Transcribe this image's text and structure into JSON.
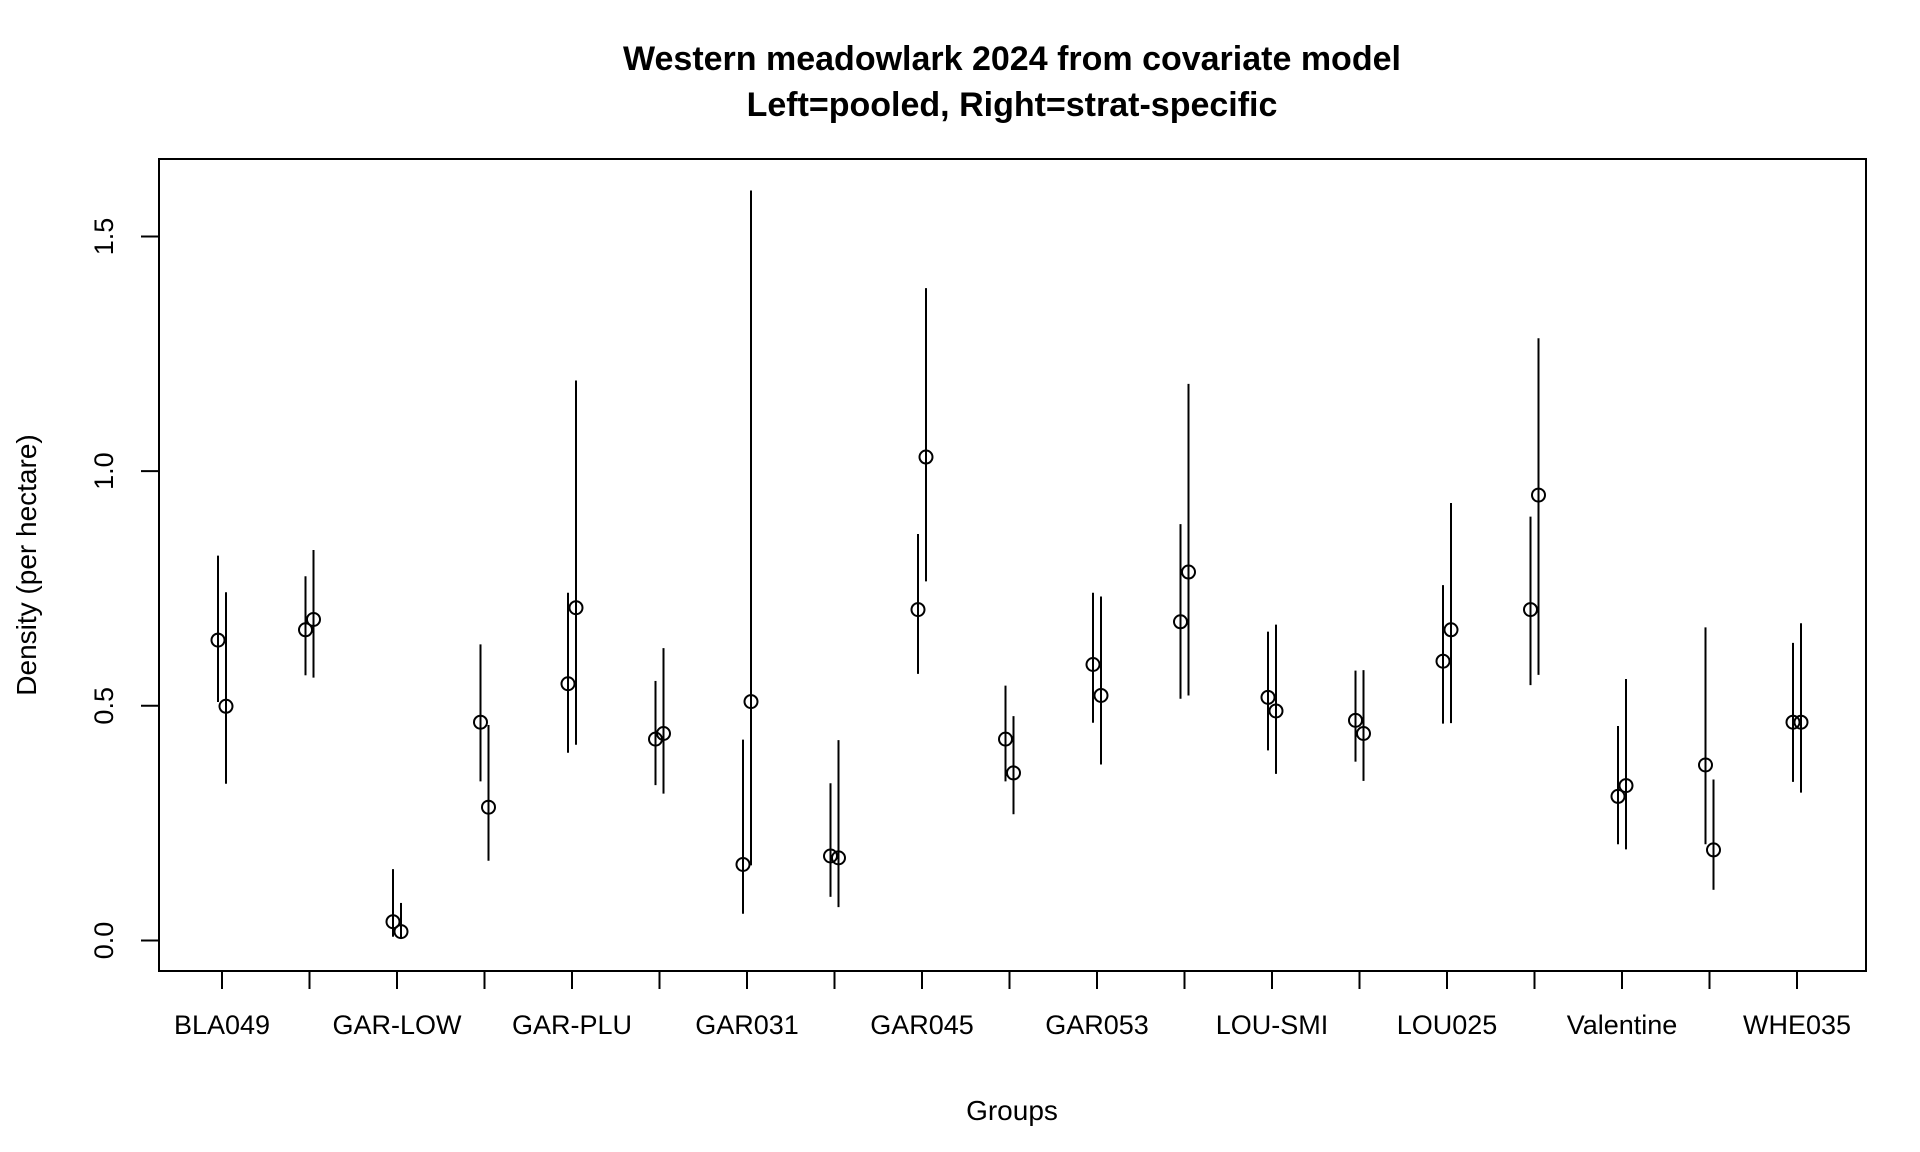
{
  "chart_data": {
    "type": "scatter",
    "title": "Western meadowlark 2024 from covariate model",
    "subtitle": "Left=pooled, Right=strat-specific",
    "xlabel": "Groups",
    "ylabel": "Density (per hectare)",
    "ylim": [
      -0.065,
      1.665
    ],
    "y_ticks": [
      0.0,
      0.5,
      1.0,
      1.5
    ],
    "y_tick_labels": [
      "0.0",
      "0.5",
      "1.0",
      "1.5"
    ],
    "x_tick_count": 19,
    "x_tick_labels": [
      {
        "index": 1,
        "label": "BLA049"
      },
      {
        "index": 3,
        "label": "GAR-LOW"
      },
      {
        "index": 5,
        "label": "GAR-PLU"
      },
      {
        "index": 7,
        "label": "GAR031"
      },
      {
        "index": 9,
        "label": "GAR045"
      },
      {
        "index": 11,
        "label": "GAR053"
      },
      {
        "index": 13,
        "label": "LOU-SMI"
      },
      {
        "index": 15,
        "label": "LOU025"
      },
      {
        "index": 17,
        "label": "Valentine"
      },
      {
        "index": 19,
        "label": "WHE035"
      }
    ],
    "grid": false,
    "series": [
      {
        "values": [
          0.64,
          0.662,
          0.04,
          0.465,
          0.547,
          0.429,
          0.162,
          0.18,
          0.705,
          0.429,
          0.588,
          0.679,
          0.518,
          0.469,
          0.595,
          0.705,
          0.307,
          0.374,
          0.465
        ],
        "lower": [
          0.508,
          0.565,
          0.008,
          0.339,
          0.4,
          0.331,
          0.057,
          0.093,
          0.568,
          0.339,
          0.464,
          0.515,
          0.405,
          0.381,
          0.462,
          0.544,
          0.205,
          0.205,
          0.338
        ],
        "upper": [
          0.82,
          0.776,
          0.152,
          0.631,
          0.741,
          0.553,
          0.428,
          0.335,
          0.866,
          0.543,
          0.741,
          0.887,
          0.658,
          0.575,
          0.757,
          0.903,
          0.457,
          0.667,
          0.634
        ]
      },
      {
        "values": [
          0.499,
          0.684,
          0.019,
          0.284,
          0.709,
          0.441,
          0.509,
          0.176,
          1.03,
          0.357,
          0.522,
          0.785,
          0.489,
          0.441,
          0.662,
          0.949,
          0.33,
          0.193,
          0.465
        ],
        "lower": [
          0.334,
          0.56,
          0.004,
          0.17,
          0.417,
          0.313,
          0.16,
          0.071,
          0.765,
          0.269,
          0.375,
          0.522,
          0.355,
          0.34,
          0.463,
          0.566,
          0.194,
          0.108,
          0.315
        ],
        "upper": [
          0.742,
          0.832,
          0.08,
          0.459,
          1.193,
          0.623,
          1.598,
          0.427,
          1.39,
          0.478,
          0.733,
          1.186,
          0.673,
          0.576,
          0.932,
          1.283,
          0.557,
          0.343,
          0.676
        ]
      }
    ]
  }
}
